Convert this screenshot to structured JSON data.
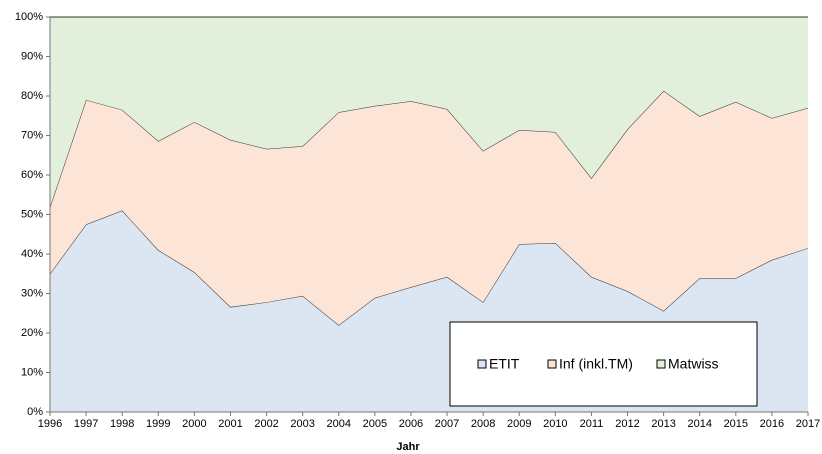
{
  "chart_data": {
    "type": "stacked_area",
    "x_label": "Jahr",
    "categories": [
      "1996",
      "1997",
      "1998",
      "1999",
      "2000",
      "2001",
      "2002",
      "2003",
      "2004",
      "2005",
      "2006",
      "2007",
      "2008",
      "2009",
      "2010",
      "2011",
      "2012",
      "2013",
      "2014",
      "2015",
      "2016",
      "2017"
    ],
    "series": [
      {
        "name": "ETIT",
        "color": "#dce6f2",
        "values": [
          35,
          47.5,
          51,
          41,
          35.4,
          26.6,
          27.8,
          29.4,
          22,
          28.9,
          31.6,
          34.2,
          27.8,
          42.5,
          42.8,
          34.2,
          30.6,
          25.6,
          33.9,
          33.9,
          38.5,
          41.5
        ]
      },
      {
        "name": "Inf (inkl.TM)",
        "color": "#fce4d6",
        "values": [
          16.9,
          31.5,
          25.5,
          27.6,
          38,
          42.3,
          38.8,
          37.9,
          53.9,
          48.6,
          47.1,
          42.5,
          38.3,
          28.9,
          28.1,
          25,
          41,
          55.7,
          41,
          44.6,
          35.9,
          35.5
        ]
      },
      {
        "name": "Matwiss",
        "color": "#e2efda",
        "values": [
          48.1,
          21,
          23.5,
          31.4,
          26.6,
          31.1,
          33.4,
          32.7,
          24.1,
          22.5,
          21.3,
          23.3,
          33.9,
          28.6,
          29.1,
          40.8,
          28.4,
          18.7,
          25.1,
          21.5,
          25.6,
          23
        ]
      }
    ],
    "ylim": [
      0,
      100
    ],
    "yticks": [
      {
        "value": 0,
        "label": "0%"
      },
      {
        "value": 10,
        "label": "10%"
      },
      {
        "value": 20,
        "label": "20%"
      },
      {
        "value": 30,
        "label": "30%"
      },
      {
        "value": 40,
        "label": "40%"
      },
      {
        "value": 50,
        "label": "50%"
      },
      {
        "value": 60,
        "label": "60%"
      },
      {
        "value": 70,
        "label": "70%"
      },
      {
        "value": 80,
        "label": "80%"
      },
      {
        "value": 90,
        "label": "90%"
      },
      {
        "value": 100,
        "label": "100%"
      }
    ],
    "legend": "bottom-right"
  }
}
